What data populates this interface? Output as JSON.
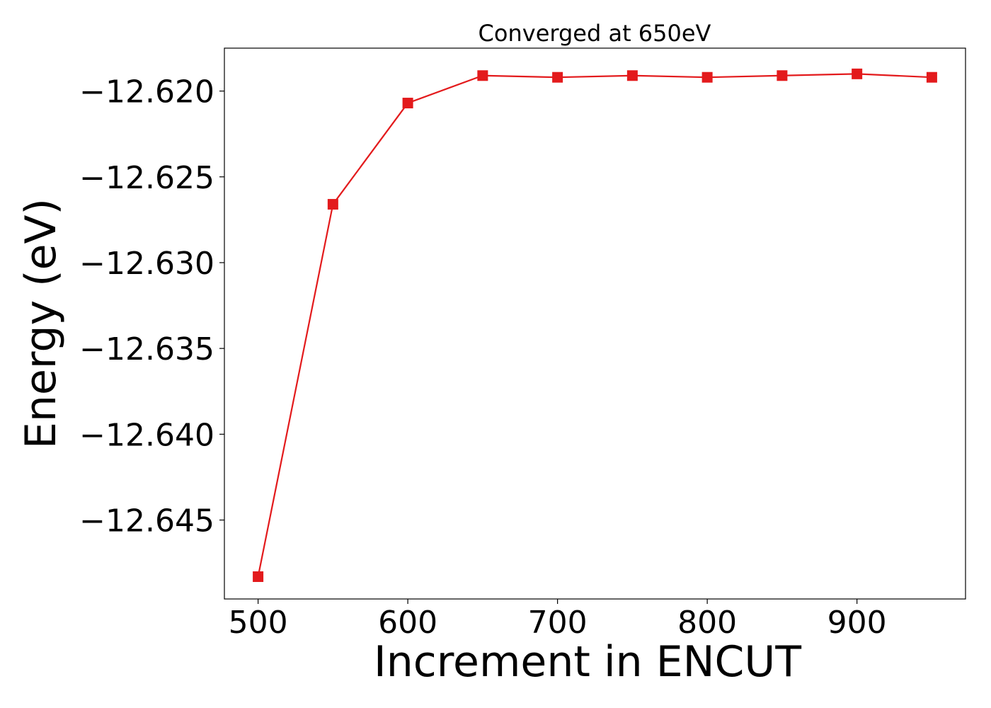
{
  "chart_data": {
    "type": "line",
    "title": "Converged at 650eV",
    "xlabel": "Increment in ENCUT",
    "ylabel": "Energy (eV)",
    "x": [
      500,
      550,
      600,
      650,
      700,
      750,
      800,
      850,
      900,
      950
    ],
    "series": [
      {
        "values": [
          -12.6483,
          -12.6266,
          -12.6207,
          -12.6191,
          -12.6192,
          -12.6191,
          -12.6192,
          -12.6191,
          -12.619,
          -12.6192
        ],
        "color": "#e31a1c",
        "marker": "square"
      }
    ],
    "xlim": [
      477.5,
      972.5
    ],
    "ylim": [
      -12.6496,
      -12.6175
    ],
    "xticks": [
      500,
      600,
      700,
      800,
      900
    ],
    "xtick_labels": [
      "500",
      "600",
      "700",
      "800",
      "900"
    ],
    "yticks": [
      -12.62,
      -12.625,
      -12.63,
      -12.635,
      -12.64,
      -12.645
    ],
    "ytick_labels": [
      "−12.620",
      "−12.625",
      "−12.630",
      "−12.635",
      "−12.640",
      "−12.645"
    ],
    "grid": false,
    "legend": false
  }
}
